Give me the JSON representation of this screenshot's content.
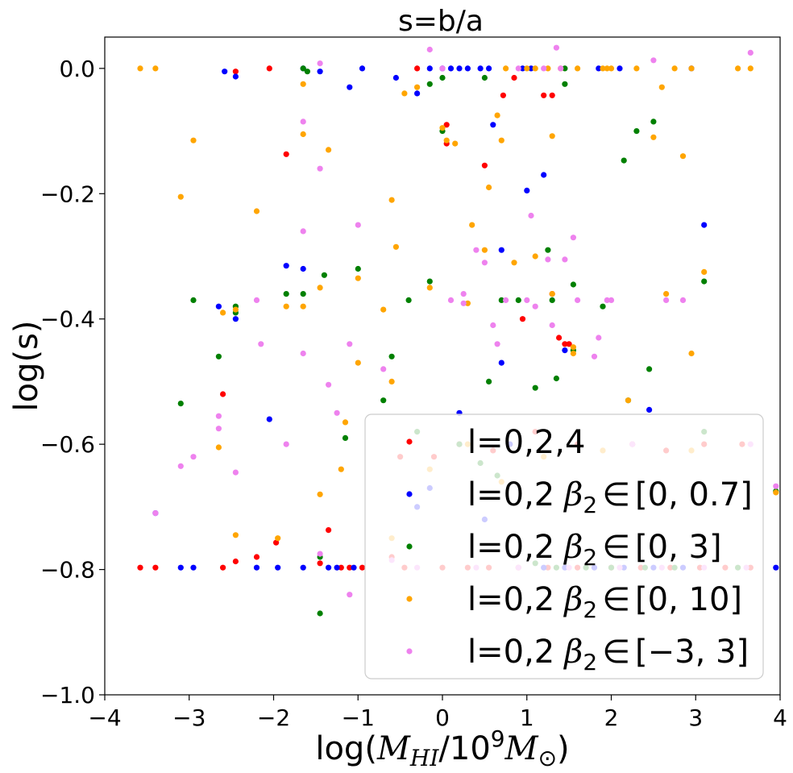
{
  "chart_data": {
    "type": "scatter",
    "title": "s=b/a",
    "xlabel_parts": {
      "prefix": "log(",
      "m1": "M",
      "sub1": "HI",
      "mid": "/10",
      "sup": "9",
      "m2": "M",
      "sub2": "⊙",
      "suffix": ")"
    },
    "ylabel": "log(s)",
    "xlim": [
      -4,
      4
    ],
    "ylim": [
      -1.0,
      0.05
    ],
    "xticks": [
      -4,
      -3,
      -2,
      -1,
      0,
      1,
      2,
      3,
      4
    ],
    "xtick_labels": [
      "−4",
      "−3",
      "−2",
      "−1",
      "0",
      "1",
      "2",
      "3",
      "4"
    ],
    "yticks": [
      -1.0,
      -0.8,
      -0.6,
      -0.4,
      -0.2,
      0.0
    ],
    "ytick_labels": [
      "−1.0",
      "−0.8",
      "−0.6",
      "−0.4",
      "−0.2",
      "0.0"
    ],
    "legend_position": "lower-right",
    "series": [
      {
        "name": "l=0,2,4",
        "label_text": "l=0,2,4",
        "beta": "",
        "color": "#ff0000",
        "points": [
          [
            -3.58,
            -0.797
          ],
          [
            -3.4,
            -0.797
          ],
          [
            -2.6,
            -0.797
          ],
          [
            -2.45,
            -0.787
          ],
          [
            -2.2,
            -0.78
          ],
          [
            -1.97,
            -0.757
          ],
          [
            -1.35,
            -0.737
          ],
          [
            -1.45,
            -0.79
          ],
          [
            -1.2,
            -0.797
          ],
          [
            -1.1,
            -0.797
          ],
          [
            -0.95,
            -0.797
          ],
          [
            -2.6,
            -0.52
          ],
          [
            -1.85,
            -0.137
          ],
          [
            -2.05,
            0.0
          ],
          [
            -2.45,
            -0.005
          ],
          [
            0.05,
            -0.09
          ],
          [
            0.05,
            -0.12
          ],
          [
            -0.3,
            0.0
          ],
          [
            0.5,
            -0.155
          ],
          [
            0.72,
            -0.043
          ],
          [
            0.85,
            -0.015
          ],
          [
            0.95,
            -0.4
          ],
          [
            1.2,
            -0.043
          ],
          [
            1.3,
            -0.043
          ],
          [
            1.38,
            -0.43
          ],
          [
            1.45,
            -0.44
          ],
          [
            1.3,
            -0.36
          ],
          [
            1.5,
            -0.44
          ],
          [
            -0.5,
            -0.62
          ],
          [
            -0.1,
            -0.62
          ],
          [
            0.2,
            -0.6
          ],
          [
            0.6,
            -0.61
          ],
          [
            1.1,
            -0.58
          ],
          [
            1.6,
            -0.6
          ],
          [
            2.25,
            -0.6
          ],
          [
            2.65,
            -0.61
          ],
          [
            3.1,
            -0.6
          ],
          [
            3.55,
            -0.6
          ],
          [
            -0.6,
            -0.78
          ],
          [
            -0.45,
            -0.797
          ],
          [
            0.0,
            -0.797
          ],
          [
            0.3,
            -0.797
          ],
          [
            0.55,
            -0.797
          ],
          [
            0.9,
            -0.797
          ],
          [
            1.25,
            -0.797
          ],
          [
            1.6,
            -0.797
          ],
          [
            2.0,
            -0.797
          ],
          [
            2.35,
            -0.797
          ],
          [
            2.7,
            -0.797
          ],
          [
            3.05,
            -0.797
          ],
          [
            3.35,
            -0.797
          ],
          [
            3.65,
            -0.797
          ]
        ]
      },
      {
        "name": "l=0,2 β2∈[0,0.7]",
        "label_text": "l=0,2",
        "beta": "[0, 0.7]",
        "color": "#0000ff",
        "points": [
          [
            -3.1,
            -0.797
          ],
          [
            -2.95,
            -0.797
          ],
          [
            -2.2,
            -0.797
          ],
          [
            -1.95,
            -0.797
          ],
          [
            -1.65,
            -0.797
          ],
          [
            -1.35,
            -0.797
          ],
          [
            -1.25,
            -0.797
          ],
          [
            -1.05,
            -0.797
          ],
          [
            -2.65,
            -0.38
          ],
          [
            -2.45,
            -0.4
          ],
          [
            -2.58,
            -0.005
          ],
          [
            -2.45,
            -0.013
          ],
          [
            -1.65,
            0.0
          ],
          [
            -1.45,
            -0.005
          ],
          [
            -1.1,
            -0.03
          ],
          [
            -0.95,
            0.0
          ],
          [
            -0.55,
            -0.015
          ],
          [
            -0.3,
            -0.04
          ],
          [
            -0.15,
            0.0
          ],
          [
            0.0,
            0.0
          ],
          [
            0.1,
            0.0
          ],
          [
            0.2,
            0.0
          ],
          [
            0.3,
            0.0
          ],
          [
            0.45,
            0.0
          ],
          [
            0.55,
            0.0
          ],
          [
            0.6,
            -0.09
          ],
          [
            0.95,
            0.0
          ],
          [
            1.05,
            0.0
          ],
          [
            1.0,
            -0.195
          ],
          [
            1.2,
            -0.17
          ],
          [
            0.7,
            -0.29
          ],
          [
            0.7,
            -0.47
          ],
          [
            1.45,
            -0.45
          ],
          [
            1.85,
            0.0
          ],
          [
            2.1,
            0.0
          ],
          [
            2.95,
            0.0
          ],
          [
            3.1,
            -0.25
          ],
          [
            2.45,
            -0.545
          ],
          [
            -1.85,
            -0.315
          ],
          [
            -1.65,
            -0.32
          ],
          [
            -2.05,
            -0.56
          ],
          [
            -3.4,
            -0.71
          ],
          [
            3.95,
            -0.797
          ],
          [
            -0.3,
            -0.7
          ],
          [
            -0.15,
            -0.67
          ],
          [
            0.2,
            -0.55
          ],
          [
            0.5,
            -0.72
          ],
          [
            0.8,
            -0.6
          ],
          [
            1.2,
            -0.797
          ],
          [
            1.45,
            -0.797
          ],
          [
            1.8,
            -0.797
          ],
          [
            2.15,
            -0.797
          ],
          [
            2.5,
            -0.797
          ],
          [
            2.85,
            -0.797
          ]
        ]
      },
      {
        "name": "l=0,2 β2∈[0,3]",
        "label_text": "l=0,2",
        "beta": "[0, 3]",
        "color": "#008000",
        "points": [
          [
            -3.1,
            -0.535
          ],
          [
            -2.95,
            -0.37
          ],
          [
            -2.65,
            -0.46
          ],
          [
            -2.45,
            -0.38
          ],
          [
            -2.45,
            -0.39
          ],
          [
            -1.65,
            -0.36
          ],
          [
            -1.65,
            0.0
          ],
          [
            -1.6,
            -0.005
          ],
          [
            -1.4,
            -0.33
          ],
          [
            -1.85,
            -0.36
          ],
          [
            -1.45,
            -0.78
          ],
          [
            -1.45,
            -0.87
          ],
          [
            -1.15,
            -0.59
          ],
          [
            -1.0,
            -0.32
          ],
          [
            -0.7,
            -0.53
          ],
          [
            -0.6,
            -0.46
          ],
          [
            -0.4,
            -0.37
          ],
          [
            -0.15,
            -0.34
          ],
          [
            0.0,
            -0.1
          ],
          [
            0.0,
            -0.015
          ],
          [
            -0.15,
            -0.025
          ],
          [
            0.55,
            -0.5
          ],
          [
            0.7,
            -0.37
          ],
          [
            0.9,
            -0.37
          ],
          [
            1.1,
            -0.51
          ],
          [
            1.25,
            -0.29
          ],
          [
            1.3,
            -0.37
          ],
          [
            1.35,
            -0.495
          ],
          [
            1.45,
            0.0
          ],
          [
            1.45,
            -0.025
          ],
          [
            1.55,
            -0.345
          ],
          [
            1.55,
            -0.45
          ],
          [
            1.9,
            -0.38
          ],
          [
            2.2,
            -0.53
          ],
          [
            2.3,
            -0.1
          ],
          [
            2.45,
            -0.48
          ],
          [
            2.5,
            -0.085
          ],
          [
            2.15,
            -0.147
          ],
          [
            3.1,
            -0.34
          ],
          [
            3.95,
            -0.675
          ],
          [
            -0.3,
            -0.58
          ],
          [
            0.2,
            -0.6
          ],
          [
            0.45,
            -0.63
          ],
          [
            0.65,
            -0.65
          ],
          [
            1.1,
            -0.79
          ],
          [
            1.35,
            -0.797
          ],
          [
            1.7,
            -0.797
          ],
          [
            2.0,
            -0.797
          ],
          [
            2.4,
            -0.797
          ],
          [
            2.75,
            -0.797
          ],
          [
            3.1,
            -0.58
          ],
          [
            3.5,
            -0.797
          ],
          [
            0.5,
            -0.015
          ]
        ]
      },
      {
        "name": "l=0,2 β2∈[0,10]",
        "label_text": "l=0,2",
        "beta": "[0, 10]",
        "color": "#ffa500",
        "points": [
          [
            -3.58,
            0.0
          ],
          [
            -3.4,
            0.0
          ],
          [
            -3.1,
            -0.205
          ],
          [
            -2.95,
            -0.115
          ],
          [
            -2.65,
            -0.605
          ],
          [
            -2.6,
            -0.39
          ],
          [
            -2.45,
            -0.385
          ],
          [
            -2.45,
            -0.745
          ],
          [
            -2.2,
            -0.228
          ],
          [
            -1.95,
            -0.75
          ],
          [
            -1.85,
            -0.38
          ],
          [
            -1.65,
            -0.105
          ],
          [
            -1.65,
            -0.38
          ],
          [
            -1.65,
            -0.025
          ],
          [
            -1.45,
            -0.35
          ],
          [
            -1.45,
            -0.68
          ],
          [
            -1.35,
            -0.13
          ],
          [
            -1.2,
            -0.64
          ],
          [
            -1.15,
            -0.565
          ],
          [
            -1.0,
            -0.47
          ],
          [
            -1.0,
            -0.335
          ],
          [
            -0.7,
            -0.385
          ],
          [
            -0.6,
            -0.21
          ],
          [
            -0.6,
            -0.5
          ],
          [
            -0.55,
            -0.285
          ],
          [
            -0.45,
            -0.04
          ],
          [
            -0.3,
            -0.03
          ],
          [
            -0.15,
            -0.35
          ],
          [
            0.0,
            -0.095
          ],
          [
            0.05,
            -0.115
          ],
          [
            0.15,
            -0.12
          ],
          [
            0.3,
            -0.375
          ],
          [
            0.35,
            -0.25
          ],
          [
            0.5,
            -0.29
          ],
          [
            0.55,
            -0.19
          ],
          [
            0.65,
            -0.075
          ],
          [
            0.7,
            -0.115
          ],
          [
            0.75,
            0.0
          ],
          [
            0.85,
            -0.31
          ],
          [
            1.1,
            -0.3
          ],
          [
            1.3,
            -0.108
          ],
          [
            1.3,
            -0.36
          ],
          [
            1.55,
            -0.455
          ],
          [
            1.55,
            -0.445
          ],
          [
            1.9,
            0.0
          ],
          [
            1.95,
            0.0
          ],
          [
            2.0,
            0.0
          ],
          [
            2.5,
            -0.11
          ],
          [
            2.6,
            -0.03
          ],
          [
            2.65,
            -0.36
          ],
          [
            2.85,
            -0.14
          ],
          [
            2.95,
            -0.455
          ],
          [
            3.1,
            -0.325
          ],
          [
            3.5,
            0.0
          ],
          [
            3.65,
            0.0
          ],
          [
            3.95,
            -0.677
          ],
          [
            1.0,
            0.0
          ],
          [
            1.1,
            0.0
          ],
          [
            1.25,
            0.0
          ],
          [
            1.4,
            0.0
          ],
          [
            1.6,
            0.0
          ],
          [
            2.3,
            0.0
          ],
          [
            2.75,
            0.0
          ],
          [
            2.95,
            0.0
          ],
          [
            -0.6,
            -0.75
          ],
          [
            -0.15,
            -0.64
          ],
          [
            0.3,
            -0.6
          ],
          [
            0.7,
            -0.66
          ],
          [
            1.2,
            -0.62
          ],
          [
            1.9,
            -0.61
          ],
          [
            2.2,
            -0.53
          ],
          [
            2.95,
            -0.61
          ]
        ]
      },
      {
        "name": "l=0,2 β2∈[−3,3]",
        "label_text": "l=0,2",
        "beta": "[−3, 3]",
        "color": "#ee82ee",
        "points": [
          [
            -3.1,
            -0.635
          ],
          [
            -2.95,
            -0.62
          ],
          [
            -2.65,
            -0.575
          ],
          [
            -2.65,
            -0.555
          ],
          [
            -2.45,
            -0.645
          ],
          [
            -2.2,
            -0.37
          ],
          [
            -2.15,
            -0.44
          ],
          [
            -1.85,
            -0.6
          ],
          [
            -1.65,
            -0.26
          ],
          [
            -1.65,
            -0.455
          ],
          [
            -1.65,
            -0.085
          ],
          [
            -1.45,
            -0.16
          ],
          [
            -1.45,
            0.008
          ],
          [
            -1.35,
            -0.505
          ],
          [
            -1.25,
            -0.55
          ],
          [
            -1.1,
            -0.44
          ],
          [
            -1.1,
            -0.84
          ],
          [
            -1.0,
            -0.25
          ],
          [
            -0.7,
            -0.48
          ],
          [
            -0.15,
            0.03
          ],
          [
            0.1,
            -0.37
          ],
          [
            0.25,
            -0.375
          ],
          [
            0.4,
            -0.29
          ],
          [
            0.5,
            -0.31
          ],
          [
            0.6,
            -0.41
          ],
          [
            0.65,
            -0.44
          ],
          [
            0.75,
            -0.37
          ],
          [
            0.9,
            0.0
          ],
          [
            1.0,
            -0.37
          ],
          [
            1.05,
            -0.235
          ],
          [
            1.1,
            -0.38
          ],
          [
            1.2,
            0.0
          ],
          [
            1.25,
            -0.305
          ],
          [
            1.3,
            -0.41
          ],
          [
            1.35,
            0.033
          ],
          [
            1.45,
            -0.305
          ],
          [
            1.55,
            -0.27
          ],
          [
            1.6,
            -0.37
          ],
          [
            1.8,
            -0.46
          ],
          [
            1.85,
            -0.43
          ],
          [
            1.95,
            -0.37
          ],
          [
            2.0,
            -0.37
          ],
          [
            2.5,
            0.013
          ],
          [
            2.65,
            -0.37
          ],
          [
            2.85,
            -0.37
          ],
          [
            3.65,
            0.025
          ],
          [
            3.65,
            -0.6
          ],
          [
            3.95,
            -0.667
          ],
          [
            -3.4,
            -0.71
          ],
          [
            -1.45,
            -0.775
          ],
          [
            0.0,
            0.0
          ],
          [
            0.25,
            -0.36
          ],
          [
            1.4,
            0.0
          ],
          [
            2.25,
            -0.6
          ],
          [
            -0.6,
            -0.785
          ],
          [
            -0.3,
            -0.797
          ],
          [
            0.4,
            -0.797
          ],
          [
            0.9,
            -0.797
          ],
          [
            1.5,
            -0.797
          ],
          [
            2.1,
            -0.797
          ],
          [
            2.6,
            -0.797
          ],
          [
            3.1,
            -0.797
          ],
          [
            3.6,
            -0.797
          ]
        ]
      }
    ]
  }
}
